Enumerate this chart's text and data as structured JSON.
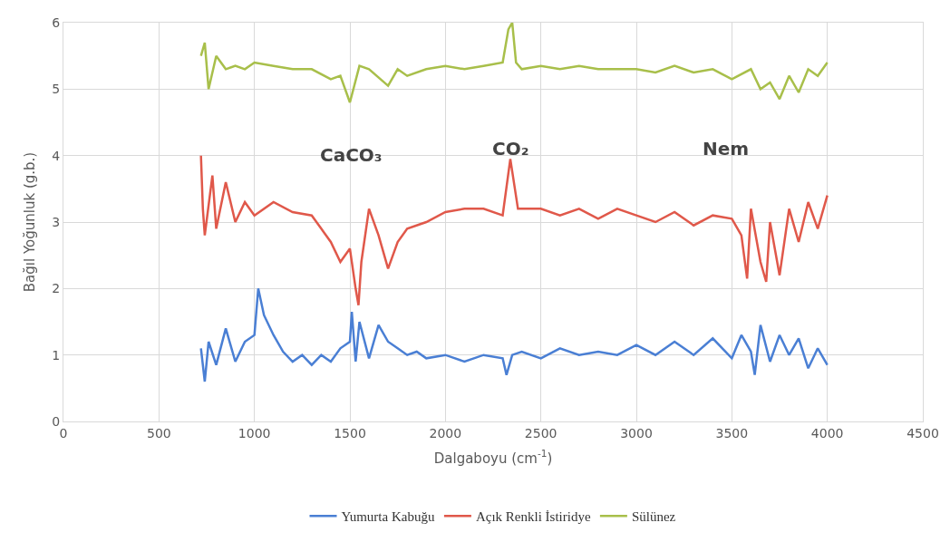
{
  "chart_data": {
    "type": "line",
    "xlabel": "Dalgaboyu (cm$^{-1}$)",
    "ylabel": "Bağıl Yoğunluk (g.b.)",
    "xlim": [
      0,
      4500
    ],
    "xticks": [
      0,
      500,
      1000,
      1500,
      2000,
      2500,
      3000,
      3500,
      4000,
      4500
    ],
    "ylim": [
      0,
      6
    ],
    "yticks": [
      0,
      1,
      2,
      3,
      4,
      5,
      6
    ],
    "grid": true,
    "legend": "bottom",
    "marker": "none",
    "line_style": "solid",
    "series": [
      {
        "name": "Yumurta Kabuğu",
        "color": "#4a7fd4",
        "x": [
          720,
          740,
          760,
          800,
          850,
          900,
          950,
          1000,
          1020,
          1050,
          1100,
          1150,
          1200,
          1250,
          1300,
          1350,
          1400,
          1450,
          1500,
          1510,
          1530,
          1550,
          1600,
          1650,
          1700,
          1750,
          1800,
          1850,
          1900,
          2000,
          2100,
          2200,
          2300,
          2320,
          2350,
          2400,
          2500,
          2600,
          2700,
          2800,
          2900,
          3000,
          3100,
          3200,
          3300,
          3400,
          3500,
          3550,
          3600,
          3620,
          3650,
          3700,
          3750,
          3800,
          3850,
          3900,
          3950,
          4000
        ],
        "values": [
          1.1,
          0.6,
          1.2,
          0.85,
          1.4,
          0.9,
          1.2,
          1.3,
          2.0,
          1.6,
          1.3,
          1.05,
          0.9,
          1.0,
          0.85,
          1.0,
          0.9,
          1.1,
          1.2,
          1.65,
          0.9,
          1.5,
          0.95,
          1.45,
          1.2,
          1.1,
          1.0,
          1.05,
          0.95,
          1.0,
          0.9,
          1.0,
          0.95,
          0.7,
          1.0,
          1.05,
          0.95,
          1.1,
          1.0,
          1.05,
          1.0,
          1.15,
          1.0,
          1.2,
          1.0,
          1.25,
          0.95,
          1.3,
          1.05,
          0.7,
          1.45,
          0.9,
          1.3,
          1.0,
          1.25,
          0.8,
          1.1,
          0.85
        ]
      },
      {
        "name": "Açık Renkli İstiridye",
        "color": "#e0584a",
        "x": [
          720,
          730,
          740,
          780,
          800,
          850,
          900,
          950,
          1000,
          1100,
          1200,
          1300,
          1350,
          1400,
          1450,
          1500,
          1530,
          1545,
          1560,
          1600,
          1650,
          1700,
          1750,
          1800,
          1900,
          2000,
          2100,
          2200,
          2300,
          2340,
          2380,
          2500,
          2600,
          2700,
          2800,
          2900,
          3000,
          3100,
          3200,
          3300,
          3400,
          3500,
          3550,
          3580,
          3600,
          3650,
          3680,
          3700,
          3750,
          3800,
          3850,
          3900,
          3950,
          4000
        ],
        "values": [
          4.0,
          3.2,
          2.8,
          3.7,
          2.9,
          3.6,
          3.0,
          3.3,
          3.1,
          3.3,
          3.15,
          3.1,
          2.9,
          2.7,
          2.4,
          2.6,
          2.0,
          1.75,
          2.4,
          3.2,
          2.8,
          2.3,
          2.7,
          2.9,
          3.0,
          3.15,
          3.2,
          3.2,
          3.1,
          3.95,
          3.2,
          3.2,
          3.1,
          3.2,
          3.05,
          3.2,
          3.1,
          3.0,
          3.15,
          2.95,
          3.1,
          3.05,
          2.8,
          2.15,
          3.2,
          2.4,
          2.1,
          3.0,
          2.2,
          3.2,
          2.7,
          3.3,
          2.9,
          3.4
        ]
      },
      {
        "name": "Sülünez",
        "color": "#a8bf4a",
        "x": [
          720,
          740,
          760,
          800,
          850,
          900,
          950,
          1000,
          1100,
          1200,
          1300,
          1400,
          1450,
          1500,
          1550,
          1600,
          1700,
          1750,
          1800,
          1900,
          2000,
          2100,
          2200,
          2300,
          2330,
          2350,
          2370,
          2400,
          2500,
          2600,
          2700,
          2800,
          2900,
          3000,
          3100,
          3200,
          3300,
          3400,
          3500,
          3600,
          3650,
          3700,
          3750,
          3800,
          3850,
          3900,
          3950,
          4000
        ],
        "values": [
          5.5,
          5.7,
          5.0,
          5.5,
          5.3,
          5.35,
          5.3,
          5.4,
          5.35,
          5.3,
          5.3,
          5.15,
          5.2,
          4.8,
          5.35,
          5.3,
          5.05,
          5.3,
          5.2,
          5.3,
          5.35,
          5.3,
          5.35,
          5.4,
          5.9,
          6.0,
          5.4,
          5.3,
          5.35,
          5.3,
          5.35,
          5.3,
          5.3,
          5.3,
          5.25,
          5.35,
          5.25,
          5.3,
          5.15,
          5.3,
          5.0,
          5.1,
          4.85,
          5.2,
          4.95,
          5.3,
          5.2,
          5.4
        ]
      }
    ],
    "annotations": [
      "CaCO₃",
      "CO₂",
      "Nem"
    ]
  }
}
